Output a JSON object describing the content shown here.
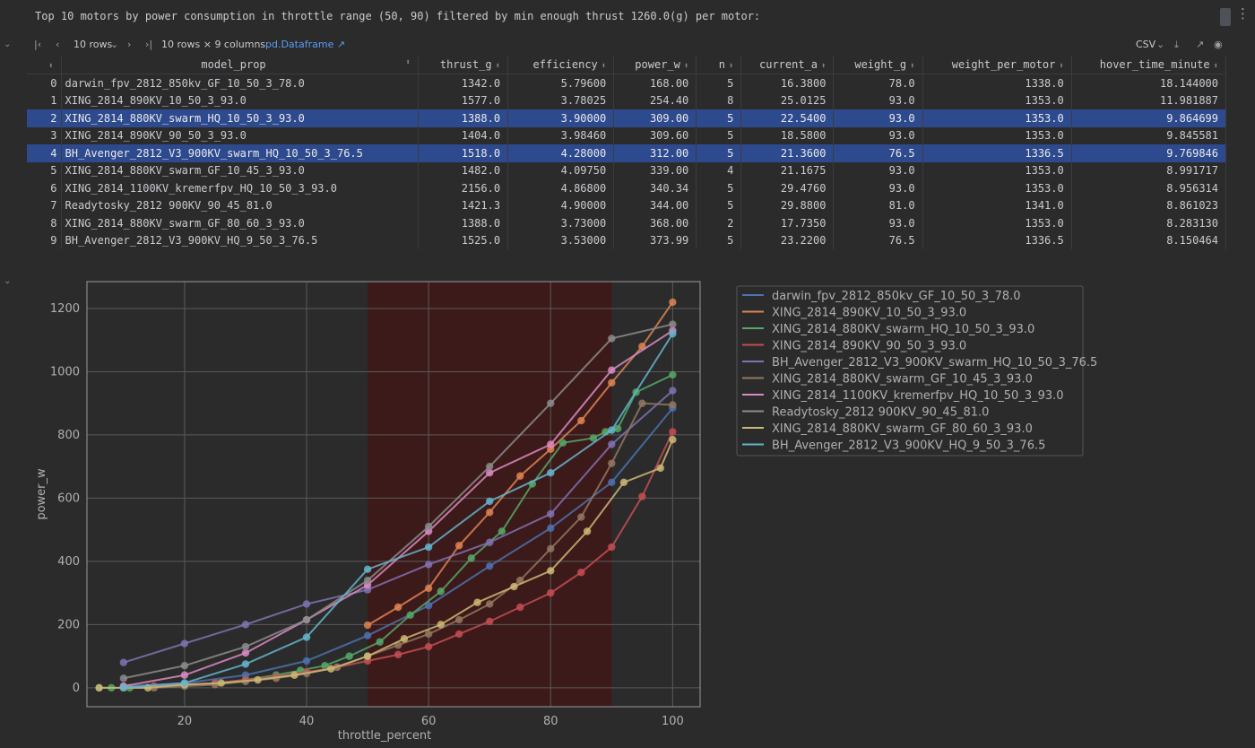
{
  "output_text": "Top 10 motors by power consumption in throttle range (50, 90) filtered by min enough thrust 1260.0(g) per motor:",
  "toolbar": {
    "rows_select": "10 rows",
    "shape": "10 rows × 9 columns",
    "link": "pd.Dataframe ↗",
    "export": "CSV"
  },
  "table": {
    "columns": [
      "model_prop",
      "thrust_g",
      "efficiency",
      "power_w",
      "n",
      "current_a",
      "weight_g",
      "weight_per_motor",
      "hover_time_minute"
    ],
    "rows": [
      [
        "0",
        "darwin_fpv_2812_850kv_GF_10_50_3_78.0",
        "1342.0",
        "5.79600",
        "168.00",
        "5",
        "16.3800",
        "78.0",
        "1338.0",
        "18.144000"
      ],
      [
        "1",
        "XING_2814_890KV_10_50_3_93.0",
        "1577.0",
        "3.78025",
        "254.40",
        "8",
        "25.0125",
        "93.0",
        "1353.0",
        "11.981887"
      ],
      [
        "2",
        "XING_2814_880KV_swarm_HQ_10_50_3_93.0",
        "1388.0",
        "3.90000",
        "309.00",
        "5",
        "22.5400",
        "93.0",
        "1353.0",
        "9.864699"
      ],
      [
        "3",
        "XING_2814_890KV_90_50_3_93.0",
        "1404.0",
        "3.98460",
        "309.60",
        "5",
        "18.5800",
        "93.0",
        "1353.0",
        "9.845581"
      ],
      [
        "4",
        "BH_Avenger_2812_V3_900KV_swarm_HQ_10_50_3_76.5",
        "1518.0",
        "4.28000",
        "312.00",
        "5",
        "21.3600",
        "76.5",
        "1336.5",
        "9.769846"
      ],
      [
        "5",
        "XING_2814_880KV_swarm_GF_10_45_3_93.0",
        "1482.0",
        "4.09750",
        "339.00",
        "4",
        "21.1675",
        "93.0",
        "1353.0",
        "8.991717"
      ],
      [
        "6",
        "XING_2814_1100KV_kremerfpv_HQ_10_50_3_93.0",
        "2156.0",
        "4.86800",
        "340.34",
        "5",
        "29.4760",
        "93.0",
        "1353.0",
        "8.956314"
      ],
      [
        "7",
        "Readytosky_2812 900KV_90_45_81.0",
        "1421.3",
        "4.90000",
        "344.00",
        "5",
        "29.8800",
        "81.0",
        "1341.0",
        "8.861023"
      ],
      [
        "8",
        "XING_2814_880KV_swarm_GF_80_60_3_93.0",
        "1388.0",
        "3.73000",
        "368.00",
        "2",
        "17.7350",
        "93.0",
        "1353.0",
        "8.283130"
      ],
      [
        "9",
        "BH_Avenger_2812_V3_900KV_HQ_9_50_3_76.5",
        "1525.0",
        "3.53000",
        "373.99",
        "5",
        "23.2200",
        "76.5",
        "1336.5",
        "8.150464"
      ]
    ],
    "selected_rows": [
      2,
      4
    ]
  },
  "chart_data": {
    "type": "line",
    "xlabel": "throttle_percent",
    "ylabel": "power_w",
    "xlim": [
      4,
      104.5
    ],
    "ylim": [
      -60,
      1285
    ],
    "xticks": [
      20,
      40,
      60,
      80,
      100
    ],
    "yticks": [
      0,
      200,
      400,
      600,
      800,
      1000,
      1200
    ],
    "grid": true,
    "legend": "top-right, outside plot",
    "highlight_range": [
      50,
      90
    ],
    "highlight_color": "#3d1a1a",
    "series": [
      {
        "name": "darwin_fpv_2812_850kv_GF_10_50_3_78.0",
        "color": "#4c72b0",
        "x": [
          10,
          20,
          30,
          40,
          50,
          60,
          70,
          80,
          90,
          100
        ],
        "y": [
          5,
          15,
          40,
          85,
          165,
          260,
          385,
          505,
          650,
          885
        ]
      },
      {
        "name": "XING_2814_890KV_10_50_3_93.0",
        "color": "#dd8452",
        "x": [
          50,
          55,
          60,
          65,
          70,
          75,
          80,
          85,
          90,
          95,
          100
        ],
        "y": [
          198,
          255,
          315,
          450,
          555,
          670,
          755,
          845,
          965,
          1080,
          1220
        ]
      },
      {
        "name": "XING_2814_880KV_swarm_HQ_10_50_3_93.0",
        "color": "#55a868",
        "x": [
          6,
          8,
          11,
          15,
          20,
          25,
          30,
          35,
          39,
          43,
          47,
          52,
          57,
          62,
          67,
          72,
          77,
          82,
          87,
          89,
          91,
          94,
          100
        ],
        "y": [
          0,
          0,
          0,
          5,
          10,
          15,
          25,
          40,
          55,
          70,
          100,
          145,
          230,
          305,
          410,
          495,
          645,
          775,
          790,
          810,
          820,
          935,
          990
        ]
      },
      {
        "name": "XING_2814_890KV_90_50_3_93.0",
        "color": "#c44e52",
        "x": [
          10,
          15,
          20,
          25,
          30,
          35,
          40,
          45,
          50,
          55,
          60,
          65,
          70,
          75,
          80,
          85,
          90,
          95,
          100
        ],
        "y": [
          0,
          5,
          10,
          15,
          25,
          35,
          50,
          65,
          85,
          105,
          130,
          170,
          210,
          255,
          300,
          365,
          445,
          605,
          810
        ]
      },
      {
        "name": "BH_Avenger_2812_V3_900KV_swarm_HQ_10_50_3_76.5",
        "color": "#8172b3",
        "x": [
          10,
          20,
          30,
          40,
          50,
          60,
          70,
          80,
          90,
          100
        ],
        "y": [
          80,
          140,
          200,
          265,
          310,
          390,
          460,
          550,
          770,
          940
        ]
      },
      {
        "name": "XING_2814_880KV_swarm_GF_10_45_3_93.0",
        "color": "#937860",
        "x": [
          10,
          15,
          20,
          25,
          30,
          35,
          40,
          45,
          50,
          55,
          60,
          65,
          70,
          75,
          80,
          85,
          90,
          95,
          100
        ],
        "y": [
          0,
          0,
          5,
          10,
          20,
          30,
          45,
          65,
          100,
          135,
          170,
          215,
          265,
          340,
          440,
          540,
          710,
          900,
          895
        ]
      },
      {
        "name": "XING_2814_1100KV_kremerfpv_HQ_10_50_3_93.0",
        "color": "#da8bc3",
        "x": [
          10,
          20,
          30,
          40,
          50,
          60,
          70,
          80,
          90,
          100
        ],
        "y": [
          5,
          40,
          110,
          215,
          325,
          495,
          680,
          770,
          1005,
          1130
        ]
      },
      {
        "name": "Readytosky_2812 900KV_90_45_81.0",
        "color": "#8c8c8c",
        "x": [
          10,
          20,
          30,
          40,
          50,
          60,
          70,
          80,
          90,
          100
        ],
        "y": [
          30,
          70,
          130,
          215,
          340,
          510,
          700,
          900,
          1105,
          1150
        ]
      },
      {
        "name": "XING_2814_880KV_swarm_GF_80_60_3_93.0",
        "color": "#ccb974",
        "x": [
          6,
          14,
          20,
          26,
          32,
          38,
          44,
          50,
          56,
          62,
          68,
          74,
          80,
          86,
          92,
          98,
          100
        ],
        "y": [
          0,
          0,
          10,
          15,
          25,
          40,
          60,
          100,
          155,
          200,
          270,
          320,
          370,
          495,
          650,
          695,
          785
        ]
      },
      {
        "name": "BH_Avenger_2812_V3_900KV_HQ_9_50_3_76.5",
        "color": "#64b5cd",
        "x": [
          10,
          20,
          30,
          40,
          50,
          60,
          70,
          80,
          90,
          100
        ],
        "y": [
          0,
          15,
          75,
          160,
          375,
          445,
          590,
          680,
          815,
          1120
        ]
      }
    ]
  }
}
